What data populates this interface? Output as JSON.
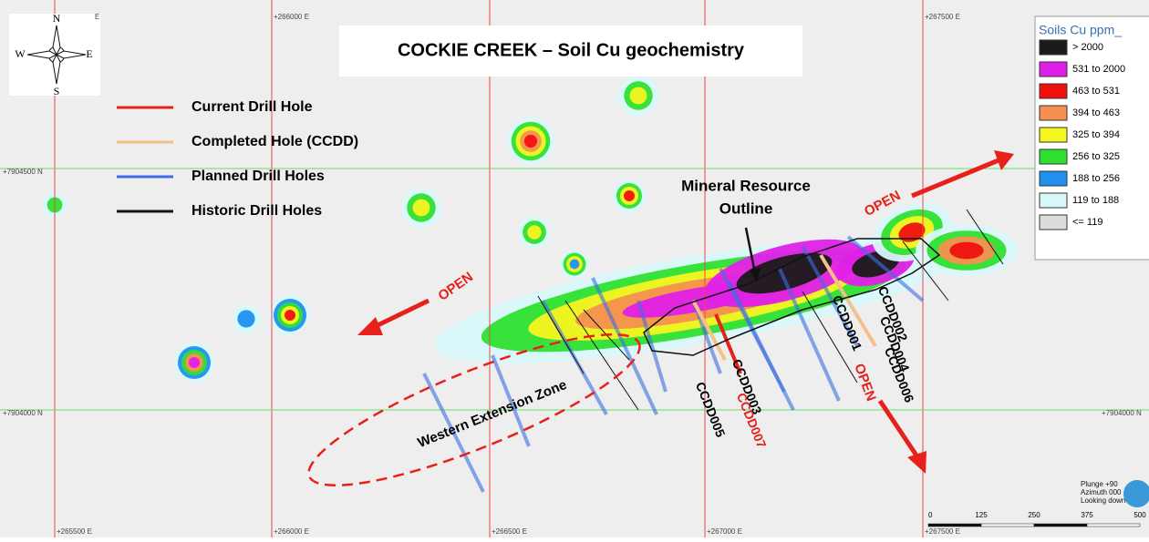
{
  "title": "COCKIE CREEK – Soil Cu geochemistry",
  "compass": {
    "north": "N",
    "south": "S",
    "east": "E",
    "west": "W"
  },
  "line_legend": [
    {
      "label": "Current Drill Hole",
      "color": "#e8201c"
    },
    {
      "label": "Completed Hole (CCDD)",
      "color": "#f7c08a"
    },
    {
      "label": "Planned Drill Holes",
      "color": "#3d6fe0"
    },
    {
      "label": "Historic Drill Holes",
      "color": "#111111"
    }
  ],
  "color_legend": {
    "title": "Soils Cu ppm_",
    "items": [
      {
        "label": "> 2000",
        "color": "#1a1a1a"
      },
      {
        "label": "531 to 2000",
        "color": "#e020e8"
      },
      {
        "label": "463 to 531",
        "color": "#f01010"
      },
      {
        "label": "394 to 463",
        "color": "#f59050"
      },
      {
        "label": "325 to 394",
        "color": "#f5f520"
      },
      {
        "label": "256 to 325",
        "color": "#30e030"
      },
      {
        "label": "188 to 256",
        "color": "#2090f0"
      },
      {
        "label": "119 to 188",
        "color": "#d8f8fa"
      },
      {
        "label": "<= 119",
        "color": "#dcdcdc"
      }
    ]
  },
  "grid_labels": {
    "top": [
      "E",
      "+266000 E",
      "+267500 E"
    ],
    "bottom": [
      "+265500 E",
      "+266000 E",
      "+266500 E",
      "+267000 E",
      "+267500 E"
    ],
    "left": [
      "+7904500 N",
      "+7904000 N"
    ],
    "right": [
      "+7904000 N"
    ]
  },
  "annotations": {
    "resource_outline": [
      "Mineral Resource",
      "Outline"
    ],
    "open": [
      "OPEN",
      "OPEN",
      "OPEN"
    ],
    "western_zone": "Western Extension Zone"
  },
  "hole_labels": [
    "CCDD001",
    "CCDD002",
    "CCDD003",
    "CCDD004",
    "CCDD005",
    "CCDD006",
    "CCDD007"
  ],
  "scale_bar": [
    0,
    125,
    250,
    375,
    500
  ],
  "view": [
    "Plunge +90",
    "Azimuth 000",
    "Looking down"
  ]
}
